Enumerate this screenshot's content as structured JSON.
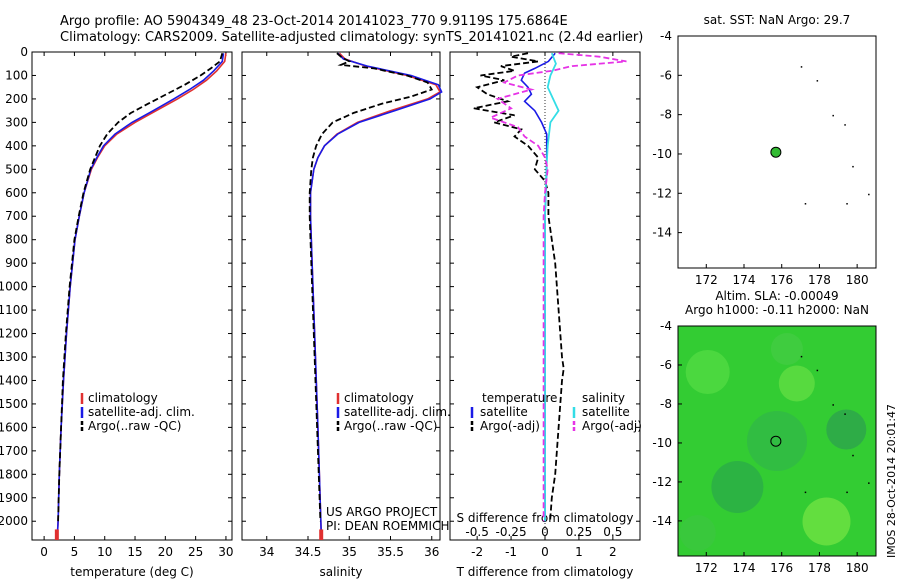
{
  "header": {
    "line1": "Argo profile: AO 5904349_48 23-Oct-2014 20141023_770 9.9119S 175.6864E",
    "line2": "Climatology: CARS2009. Satellite-adjusted climatology: synTS_20141021.nc (2.4d earlier)"
  },
  "footer_side": "IMOS 28-Oct-2014 20:01:47",
  "colors": {
    "clim": "#e03030",
    "sat": "#1a1ae6",
    "argo": "#000000",
    "sat_cyan": "#33dde6",
    "argo_magenta": "#e633e6",
    "map_bg": "#33cc33",
    "marker": "#33bb33"
  },
  "chart_data": [
    {
      "type": "line",
      "name": "temperature",
      "xlabel": "temperature (deg C)",
      "xlim": [
        -2,
        31
      ],
      "xticks": [
        0,
        5,
        10,
        15,
        20,
        25,
        30
      ],
      "xtick_labels": [
        "0",
        "5",
        "10",
        "15",
        "20",
        "25",
        "30"
      ],
      "ylim": [
        0,
        2080
      ],
      "yticks": [
        0,
        100,
        200,
        300,
        400,
        500,
        600,
        700,
        800,
        900,
        1000,
        1100,
        1200,
        1300,
        1400,
        1500,
        1600,
        1700,
        1800,
        1900,
        2000
      ],
      "ytick_labels": [
        "0",
        "100",
        "200",
        "300",
        "400",
        "500",
        "600",
        "700",
        "800",
        "900",
        "1000",
        "1100",
        "1200",
        "1300",
        "1400",
        "1500",
        "1600",
        "1700",
        "1800",
        "1900",
        "2000"
      ],
      "legend": [
        "climatology",
        "satellite-adj. clim.",
        "Argo(..raw -QC)"
      ],
      "series": [
        {
          "name": "climatology",
          "depth": [
            5,
            40,
            80,
            120,
            160,
            200,
            250,
            300,
            350,
            400,
            450,
            500,
            600,
            700,
            800,
            1000,
            1200,
            1400,
            1600,
            1800,
            2000,
            2050
          ],
          "values": [
            30,
            29.8,
            28.5,
            26.8,
            24.6,
            22,
            18.5,
            15,
            12,
            10,
            8.8,
            7.8,
            6.6,
            5.8,
            5.1,
            4.3,
            3.7,
            3.2,
            2.8,
            2.5,
            2.3,
            2.2
          ]
        },
        {
          "name": "satellite",
          "depth": [
            5,
            40,
            80,
            120,
            160,
            200,
            250,
            300,
            350,
            400,
            450,
            500,
            600,
            700,
            800,
            1000,
            1200,
            1400,
            1600,
            1800,
            2000,
            2050
          ],
          "values": [
            29.6,
            29.4,
            28,
            26.3,
            24,
            21.4,
            18,
            14.5,
            11.7,
            9.8,
            8.7,
            7.7,
            6.6,
            5.8,
            5.1,
            4.3,
            3.7,
            3.2,
            2.8,
            2.5,
            2.3,
            2.2
          ]
        },
        {
          "name": "argo",
          "depth": [
            5,
            40,
            70,
            100,
            140,
            180,
            220,
            260,
            300,
            350,
            400,
            450,
            500,
            600,
            700,
            800,
            1000,
            1200,
            1400,
            1600,
            1800,
            2000
          ],
          "values": [
            29.4,
            29,
            27.5,
            25.8,
            23.2,
            20.2,
            17.2,
            14.3,
            12.2,
            10.4,
            9.2,
            8.4,
            7.6,
            6.5,
            5.7,
            5.0,
            4.2,
            3.6,
            3.1,
            2.8,
            2.5,
            2.3
          ]
        }
      ]
    },
    {
      "type": "line",
      "name": "salinity",
      "xlabel": "salinity",
      "xlim": [
        33.7,
        36.1
      ],
      "xticks": [
        34,
        34.5,
        35,
        35.5,
        36
      ],
      "xtick_labels": [
        "34",
        "34.5",
        "35",
        "35.5",
        "36"
      ],
      "ylim": [
        0,
        2080
      ],
      "legend": [
        "climatology",
        "satellite-adj. clim.",
        "Argo(..raw -QC)"
      ],
      "annotation": [
        "US ARGO PROJECT",
        "PI: DEAN ROEMMICH"
      ],
      "series": [
        {
          "name": "climatology",
          "depth": [
            5,
            30,
            60,
            100,
            140,
            170,
            200,
            250,
            300,
            350,
            400,
            450,
            500,
            600,
            700,
            900,
            1200,
            1600,
            2050
          ],
          "values": [
            34.88,
            34.95,
            35.2,
            35.7,
            36.05,
            36.1,
            35.95,
            35.5,
            35.1,
            34.85,
            34.7,
            34.62,
            34.57,
            34.53,
            34.53,
            34.55,
            34.58,
            34.62,
            34.66
          ]
        },
        {
          "name": "satellite",
          "depth": [
            5,
            30,
            60,
            100,
            140,
            170,
            200,
            250,
            300,
            350,
            400,
            450,
            500,
            600,
            700,
            900,
            1200,
            1600,
            2050
          ],
          "values": [
            34.86,
            34.93,
            35.22,
            35.75,
            36.08,
            36.12,
            35.98,
            35.55,
            35.12,
            34.86,
            34.7,
            34.62,
            34.57,
            34.53,
            34.53,
            34.55,
            34.58,
            34.62,
            34.66
          ]
        },
        {
          "name": "argo",
          "depth": [
            5,
            20,
            40,
            55,
            70,
            100,
            130,
            160,
            190,
            220,
            260,
            300,
            350,
            400,
            450,
            500,
            600,
            700,
            900,
            1200,
            1600,
            2000
          ],
          "values": [
            34.85,
            34.9,
            35.0,
            34.9,
            35.3,
            35.7,
            35.95,
            36.0,
            35.75,
            35.4,
            35.05,
            34.8,
            34.67,
            34.6,
            34.56,
            34.54,
            34.52,
            34.52,
            34.54,
            34.57,
            34.61,
            34.65
          ]
        }
      ]
    },
    {
      "type": "line",
      "name": "difference",
      "xlabel": "T difference from climatology",
      "top_label": "S difference from climatology",
      "xlim": [
        -2.8,
        2.8
      ],
      "xticks": [
        -2,
        -1,
        0,
        1,
        2
      ],
      "xtick_labels": [
        "-2",
        "-1",
        "0",
        "1",
        "2"
      ],
      "sticks": [
        -0.5,
        -0.25,
        0.25,
        0.5
      ],
      "stick_labels": [
        "-0.5",
        "-0.25",
        "0.25",
        "0.5"
      ],
      "ylim": [
        0,
        2080
      ],
      "legend_titles": [
        "temperature",
        "salinity"
      ],
      "legend_left": [
        "satellite",
        "Argo(-adj)"
      ],
      "legend_right": [
        "satellite",
        "Argo(-adj)"
      ],
      "series": [
        {
          "name": "T satellite",
          "depth": [
            5,
            40,
            70,
            90,
            120,
            150,
            180,
            210,
            250,
            300,
            350,
            400,
            500,
            700,
            1000,
            1400,
            2000
          ],
          "values": [
            0.3,
            0.1,
            -0.3,
            -0.6,
            -0.7,
            -0.5,
            -0.4,
            -0.6,
            -0.3,
            -0.1,
            0.05,
            0.05,
            0.05,
            0,
            0,
            0,
            0
          ]
        },
        {
          "name": "T argo",
          "depth": [
            5,
            20,
            40,
            60,
            80,
            100,
            120,
            150,
            180,
            210,
            240,
            270,
            300,
            330,
            360,
            400,
            450,
            500,
            550,
            600,
            700,
            800,
            900,
            1000,
            1100,
            1200,
            1300,
            1350,
            1400,
            1500,
            1600,
            1700,
            1800,
            1900,
            2000
          ],
          "values": [
            -0.5,
            -1.0,
            -0.2,
            -1.3,
            -0.9,
            -1.9,
            -1.2,
            -2.0,
            -1.7,
            -1.1,
            -2.1,
            -0.9,
            -1.5,
            -0.7,
            -0.9,
            -0.5,
            -0.2,
            -0.3,
            0,
            0.1,
            0.1,
            0.2,
            0.3,
            0.35,
            0.4,
            0.45,
            0.5,
            0.55,
            0.5,
            0.45,
            0.4,
            0.35,
            0.3,
            0.2,
            0.15
          ]
        },
        {
          "name": "S satellite",
          "depth": [
            5,
            50,
            100,
            150,
            200,
            250,
            300,
            400,
            500,
            700,
            1000,
            1500,
            2000
          ],
          "values": [
            0.05,
            0.08,
            0.04,
            0.02,
            0.06,
            0.1,
            0.04,
            0.02,
            0.01,
            0,
            0,
            0,
            0
          ]
        },
        {
          "name": "S argo",
          "depth": [
            5,
            20,
            40,
            60,
            80,
            100,
            130,
            160,
            200,
            240,
            280,
            320,
            360,
            400,
            450,
            500,
            600,
            700,
            800,
            1200,
            1600,
            2000
          ],
          "values": [
            0.1,
            0.4,
            0.6,
            0.2,
            0.05,
            -0.2,
            -0.3,
            -0.1,
            -0.35,
            -0.25,
            -0.4,
            -0.2,
            -0.15,
            -0.05,
            0,
            0.02,
            0,
            -0.01,
            -0.01,
            -0.01,
            -0.01,
            -0.01
          ]
        }
      ]
    },
    {
      "type": "map",
      "name": "sst_map",
      "title": "sat. SST: NaN Argo: 29.7",
      "xlim": [
        170.5,
        181
      ],
      "ylim": [
        -15.8,
        -4
      ],
      "xticks": [
        172,
        174,
        176,
        178,
        180
      ],
      "xtick_labels": [
        "172",
        "174",
        "176",
        "178",
        "180"
      ],
      "yticks": [
        -4,
        -6,
        -8,
        -10,
        -12,
        -14
      ],
      "ytick_labels": [
        "-4",
        "-6",
        "-8",
        "-10",
        "-12",
        "-14"
      ],
      "marker": {
        "lon": 175.69,
        "lat": -9.91
      }
    },
    {
      "type": "map",
      "name": "sla_map",
      "title": "Altim. SLA: -0.00049",
      "subtitle": "Argo h1000: -0.11 h2000: NaN",
      "xlim": [
        170.5,
        181
      ],
      "ylim": [
        -15.8,
        -4
      ],
      "xticks": [
        172,
        174,
        176,
        178,
        180
      ],
      "xtick_labels": [
        "172",
        "174",
        "176",
        "178",
        "180"
      ],
      "yticks": [
        -4,
        -6,
        -8,
        -10,
        -12,
        -14
      ],
      "ytick_labels": [
        "-4",
        "-6",
        "-8",
        "-10",
        "-12",
        "-14"
      ],
      "marker": {
        "lon": 175.69,
        "lat": -9.91
      }
    }
  ]
}
